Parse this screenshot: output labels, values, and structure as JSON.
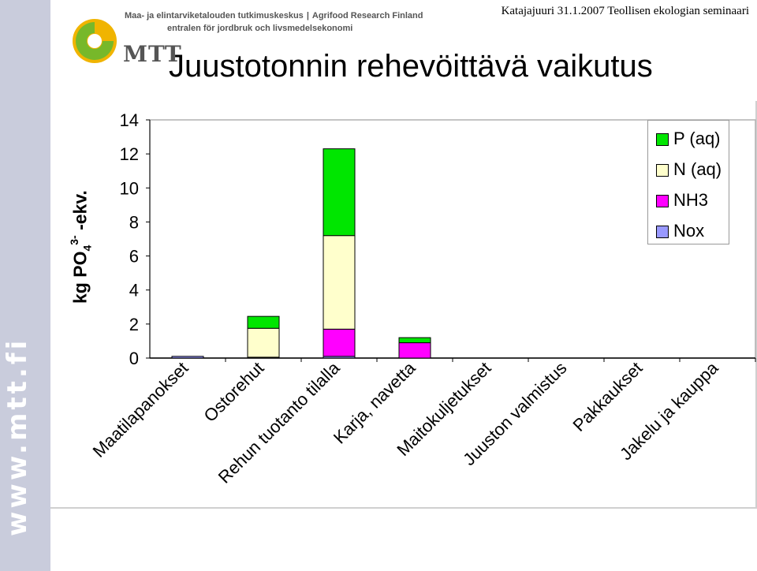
{
  "header": {
    "org_line1_fi": "Maa- ja elintarviketalouden tutkimuskeskus",
    "org_line1_en": "Agrifood Research Finland",
    "org_line2_sv": "entralen för jordbruk och livsmedelsekonomi",
    "logo_text": "MTT",
    "event": "Katajajuuri 31.1.2007 Teollisen ekologian seminaari"
  },
  "sidebar": {
    "url_text": "www.mtt.fi"
  },
  "slide": {
    "title": "Juustotonnin rehevöittävä vaikutus"
  },
  "colors": {
    "p_aq": "#00e600",
    "n_aq": "#ffffcc",
    "nh3": "#ff00ff",
    "nox": "#9999ff",
    "sidebar": "#c9ccdc"
  },
  "chart_data": {
    "type": "bar",
    "stacked": true,
    "title": "Juustotonnin rehevöittävä vaikutus",
    "ylabel": "kg PO4 3- -ekv.",
    "ylabel_parts": {
      "main": "kg PO",
      "sub": "4",
      "sup": "3-",
      "tail": " -ekv."
    },
    "xlabel": "",
    "ylim": [
      0,
      14
    ],
    "yticks": [
      0,
      2,
      4,
      6,
      8,
      10,
      12,
      14
    ],
    "grid": false,
    "legend_position": "top-right",
    "categories": [
      "Maatilapanokset",
      "Ostorehut",
      "Rehun tuotanto tilalla",
      "Karja, navetta",
      "Maitokuljetukset",
      "Juuston valmistus",
      "Pakkaukset",
      "Jakelu ja kauppa"
    ],
    "series": [
      {
        "name": "Nox",
        "color": "#9999ff",
        "values": [
          0.1,
          0.05,
          0.1,
          0,
          0,
          0,
          0,
          0
        ]
      },
      {
        "name": "NH3",
        "color": "#ff00ff",
        "values": [
          0,
          0,
          1.6,
          0.9,
          0,
          0,
          0,
          0
        ]
      },
      {
        "name": "N (aq)",
        "color": "#ffffcc",
        "values": [
          0,
          1.7,
          5.5,
          0,
          0,
          0,
          0,
          0
        ]
      },
      {
        "name": "P (aq)",
        "color": "#00e600",
        "values": [
          0,
          0.7,
          5.1,
          0.3,
          0,
          0,
          0,
          0
        ]
      }
    ],
    "legend_order": [
      "P (aq)",
      "N (aq)",
      "NH3",
      "Nox"
    ]
  }
}
